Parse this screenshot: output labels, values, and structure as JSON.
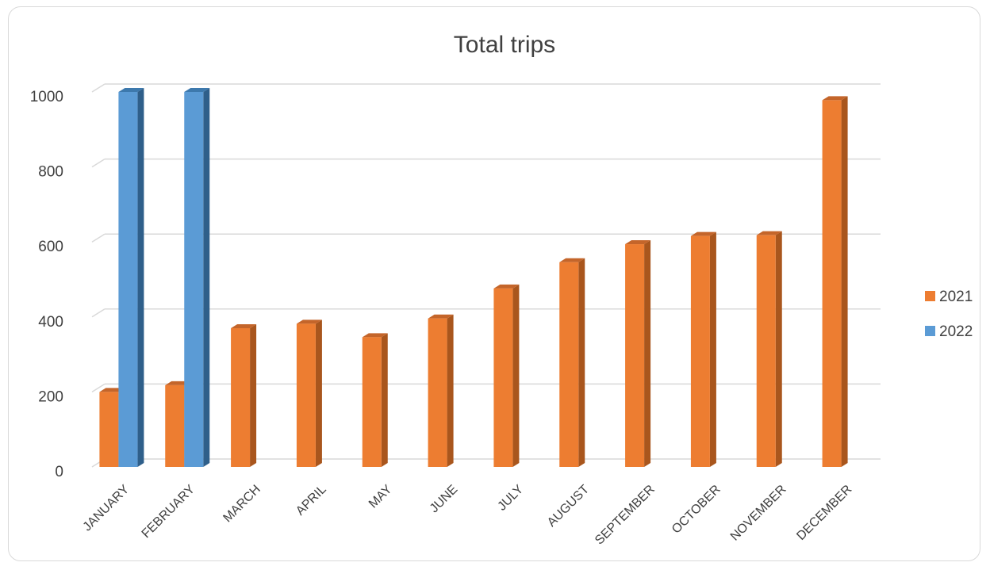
{
  "chart_data": {
    "type": "bar",
    "title": "Total trips",
    "xlabel": "",
    "ylabel": "",
    "ylim": [
      0,
      1000
    ],
    "yticks": [
      0,
      200,
      400,
      600,
      800,
      1000
    ],
    "grid": true,
    "legend_position": "right",
    "style": "3d-clustered-column",
    "categories": [
      "JANUARY",
      "FEBRUARY",
      "MARCH",
      "APRIL",
      "MAY",
      "JUNE",
      "JULY",
      "AUGUST",
      "SEPTEMBER",
      "OCTOBER",
      "NOVEMBER",
      "DECEMBER"
    ],
    "series": [
      {
        "name": "2021",
        "color": "#ED7D31",
        "side_color": "#A9561D",
        "top_color": "#C4652A",
        "values": [
          200,
          218,
          370,
          382,
          346,
          396,
          476,
          546,
          594,
          616,
          618,
          978
        ]
      },
      {
        "name": "2022",
        "color": "#5B9BD5",
        "side_color": "#2F5F8A",
        "top_color": "#3D79AD",
        "values": [
          1000,
          1000,
          null,
          null,
          null,
          null,
          null,
          null,
          null,
          null,
          null,
          null
        ]
      }
    ],
    "colors": {
      "gridline": "#d9d9d9",
      "text": "#404040"
    }
  }
}
